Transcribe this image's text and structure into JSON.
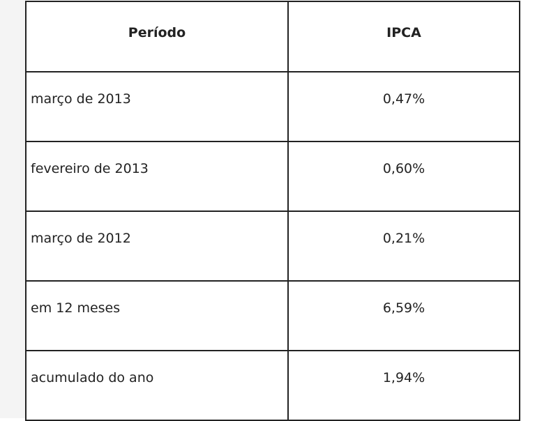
{
  "table": {
    "header": [
      "Período",
      "IPCA"
    ],
    "rows": [
      [
        "março de 2013",
        "0,47%"
      ],
      [
        "fevereiro de 2013",
        "0,60%"
      ],
      [
        "março de 2012",
        "0,21%"
      ],
      [
        "em 12 meses",
        "6,59%"
      ],
      [
        "acumulado do ano",
        "1,94%"
      ]
    ]
  }
}
